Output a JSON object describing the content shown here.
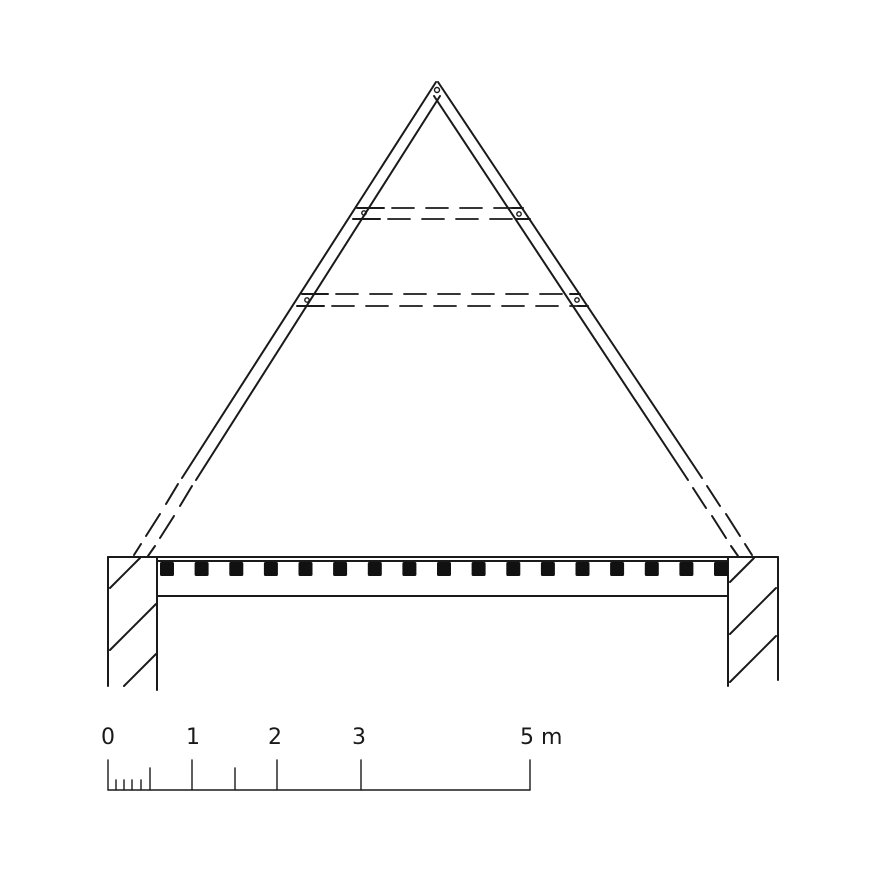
{
  "scale_bar": {
    "labels": [
      "0",
      "1",
      "2",
      "3",
      "5 m"
    ],
    "unit": "m"
  },
  "ceiling_joists": {
    "count": 17
  }
}
